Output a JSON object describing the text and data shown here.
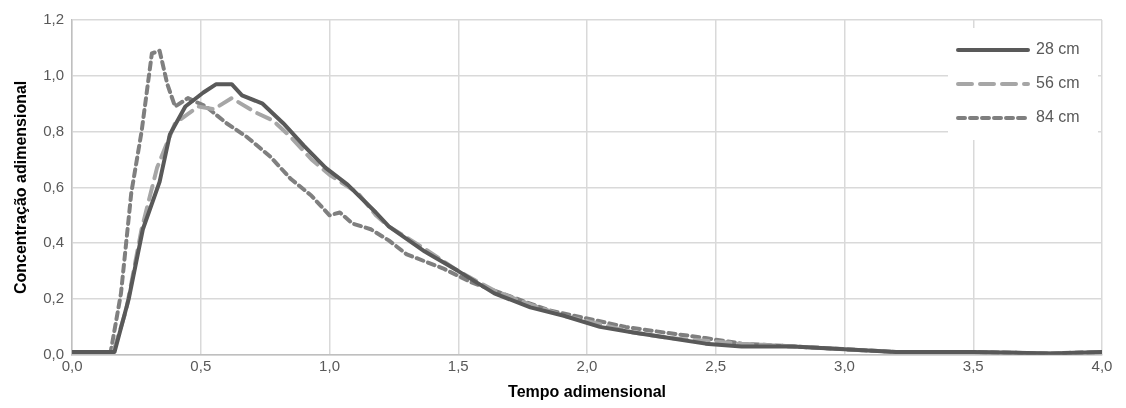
{
  "chart_data": {
    "type": "line",
    "xlabel": "Tempo adimensional",
    "ylabel": "Concentração adimensional",
    "xlim": [
      0,
      4
    ],
    "xticks": [
      {
        "value": 0,
        "label": "0,0"
      },
      {
        "value": 0.5,
        "label": "0,5"
      },
      {
        "value": 1,
        "label": "1,0"
      },
      {
        "value": 1.5,
        "label": "1,5"
      },
      {
        "value": 2,
        "label": "2,0"
      },
      {
        "value": 2.5,
        "label": "2,5"
      },
      {
        "value": 3,
        "label": "3,0"
      },
      {
        "value": 3.5,
        "label": "3,5"
      },
      {
        "value": 4,
        "label": "4,0"
      }
    ],
    "ylim": [
      0,
      1.2
    ],
    "yticks": [
      {
        "value": 0,
        "label": "0,0"
      },
      {
        "value": 0.2,
        "label": "0,2"
      },
      {
        "value": 0.4,
        "label": "0,4"
      },
      {
        "value": 0.6,
        "label": "0,6"
      },
      {
        "value": 0.8,
        "label": "0,8"
      },
      {
        "value": 1,
        "label": "1,0"
      },
      {
        "value": 1.2,
        "label": "1,2"
      }
    ],
    "grid": true,
    "legend": "top right",
    "marker": "none",
    "series": [
      {
        "name": "28 cm",
        "color": "#595959",
        "line_style": "solid",
        "x": [
          0,
          0.1,
          0.165,
          0.22,
          0.275,
          0.34,
          0.38,
          0.44,
          0.51,
          0.56,
          0.62,
          0.66,
          0.74,
          0.82,
          0.9,
          0.985,
          1.07,
          1.18,
          1.23,
          1.37,
          1.5,
          1.64,
          1.78,
          1.91,
          2.05,
          2.18,
          2.32,
          2.46,
          2.6,
          2.8,
          3.0,
          3.2,
          3.5,
          3.8,
          4.0
        ],
        "values": [
          0.01,
          0.01,
          0.01,
          0.2,
          0.45,
          0.62,
          0.79,
          0.89,
          0.94,
          0.97,
          0.97,
          0.93,
          0.9,
          0.83,
          0.75,
          0.67,
          0.61,
          0.51,
          0.46,
          0.37,
          0.3,
          0.22,
          0.17,
          0.14,
          0.1,
          0.08,
          0.06,
          0.04,
          0.03,
          0.03,
          0.02,
          0.01,
          0.01,
          0.005,
          0.01
        ]
      },
      {
        "name": "56 cm",
        "color": "#a6a6a6",
        "line_style": "dashed",
        "x": [
          0,
          0.1,
          0.16,
          0.21,
          0.27,
          0.33,
          0.4,
          0.49,
          0.55,
          0.62,
          0.71,
          0.78,
          0.85,
          0.93,
          1.0,
          1.11,
          1.18,
          1.23,
          1.37,
          1.5,
          1.64,
          1.78,
          1.91,
          2.05,
          2.18,
          2.32,
          2.46,
          2.6,
          2.8,
          3.0,
          3.2,
          3.5,
          3.8,
          4.0
        ],
        "values": [
          0.01,
          0.01,
          0.01,
          0.16,
          0.45,
          0.67,
          0.83,
          0.89,
          0.88,
          0.92,
          0.87,
          0.84,
          0.78,
          0.7,
          0.645,
          0.58,
          0.5,
          0.46,
          0.38,
          0.3,
          0.23,
          0.18,
          0.14,
          0.11,
          0.08,
          0.06,
          0.05,
          0.04,
          0.03,
          0.02,
          0.01,
          0.01,
          0.005,
          0.01
        ]
      },
      {
        "name": "84 cm",
        "color": "#7f7f7f",
        "line_style": "dotted",
        "x": [
          0,
          0.1,
          0.15,
          0.19,
          0.23,
          0.27,
          0.31,
          0.34,
          0.37,
          0.4,
          0.45,
          0.52,
          0.6,
          0.68,
          0.77,
          0.85,
          0.93,
          1.0,
          1.04,
          1.09,
          1.16,
          1.23,
          1.3,
          1.44,
          1.55,
          1.7,
          1.85,
          2.0,
          2.15,
          2.3,
          2.46,
          2.6,
          2.8,
          3.0,
          3.2,
          3.5,
          3.8,
          4.0
        ],
        "values": [
          0.01,
          0.01,
          0.01,
          0.22,
          0.58,
          0.8,
          1.08,
          1.09,
          0.97,
          0.89,
          0.92,
          0.89,
          0.83,
          0.78,
          0.71,
          0.63,
          0.57,
          0.5,
          0.51,
          0.47,
          0.45,
          0.41,
          0.36,
          0.31,
          0.26,
          0.21,
          0.16,
          0.13,
          0.1,
          0.08,
          0.06,
          0.04,
          0.03,
          0.02,
          0.01,
          0.01,
          0.005,
          0.01
        ]
      }
    ]
  }
}
